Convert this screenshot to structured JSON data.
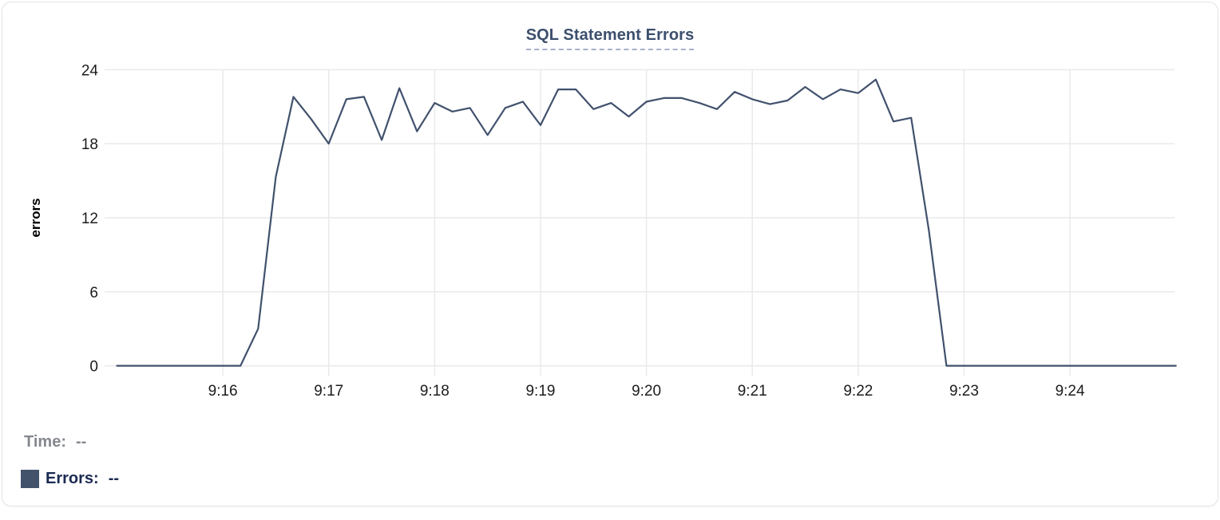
{
  "chart_data": {
    "type": "line",
    "title": "SQL Statement Errors",
    "xlabel": "",
    "ylabel": "errors",
    "ylim": [
      0,
      24
    ],
    "y_ticks": [
      0,
      6,
      12,
      18,
      24
    ],
    "x_tick_labels": [
      "9:16",
      "9:17",
      "9:18",
      "9:19",
      "9:20",
      "9:21",
      "9:22",
      "9:23",
      "9:24"
    ],
    "x_range": [
      "9:15:00",
      "9:25:00"
    ],
    "sample_interval_seconds": 10,
    "grid": true,
    "legend_position": "bottom-left",
    "series": [
      {
        "name": "Errors",
        "color": "#41516d",
        "points": [
          [
            "9:15:00",
            0
          ],
          [
            "9:15:10",
            0
          ],
          [
            "9:15:20",
            0
          ],
          [
            "9:15:30",
            0
          ],
          [
            "9:15:40",
            0
          ],
          [
            "9:15:50",
            0
          ],
          [
            "9:16:00",
            0
          ],
          [
            "9:16:10",
            0
          ],
          [
            "9:16:20",
            3
          ],
          [
            "9:16:30",
            15.3
          ],
          [
            "9:16:40",
            21.8
          ],
          [
            "9:16:50",
            20
          ],
          [
            "9:17:00",
            18
          ],
          [
            "9:17:10",
            21.6
          ],
          [
            "9:17:20",
            21.8
          ],
          [
            "9:17:30",
            18.3
          ],
          [
            "9:17:40",
            22.5
          ],
          [
            "9:17:50",
            19
          ],
          [
            "9:18:00",
            21.3
          ],
          [
            "9:18:10",
            20.6
          ],
          [
            "9:18:20",
            20.9
          ],
          [
            "9:18:30",
            18.7
          ],
          [
            "9:18:40",
            20.9
          ],
          [
            "9:18:50",
            21.4
          ],
          [
            "9:19:00",
            19.5
          ],
          [
            "9:19:10",
            22.4
          ],
          [
            "9:19:20",
            22.4
          ],
          [
            "9:19:30",
            20.8
          ],
          [
            "9:19:40",
            21.3
          ],
          [
            "9:19:50",
            20.2
          ],
          [
            "9:20:00",
            21.4
          ],
          [
            "9:20:10",
            21.7
          ],
          [
            "9:20:20",
            21.7
          ],
          [
            "9:20:30",
            21.3
          ],
          [
            "9:20:40",
            20.8
          ],
          [
            "9:20:50",
            22.2
          ],
          [
            "9:21:00",
            21.6
          ],
          [
            "9:21:10",
            21.2
          ],
          [
            "9:21:20",
            21.5
          ],
          [
            "9:21:30",
            22.6
          ],
          [
            "9:21:40",
            21.6
          ],
          [
            "9:21:50",
            22.4
          ],
          [
            "9:22:00",
            22.1
          ],
          [
            "9:22:10",
            23.2
          ],
          [
            "9:22:20",
            19.8
          ],
          [
            "9:22:30",
            20.1
          ],
          [
            "9:22:40",
            11
          ],
          [
            "9:22:50",
            0
          ],
          [
            "9:23:00",
            0
          ],
          [
            "9:23:10",
            0
          ],
          [
            "9:23:20",
            0
          ],
          [
            "9:23:30",
            0
          ],
          [
            "9:23:40",
            0
          ],
          [
            "9:23:50",
            0
          ],
          [
            "9:24:00",
            0
          ],
          [
            "9:24:10",
            0
          ],
          [
            "9:24:20",
            0
          ],
          [
            "9:24:30",
            0
          ],
          [
            "9:24:40",
            0
          ],
          [
            "9:24:50",
            0
          ],
          [
            "9:25:00",
            0
          ]
        ]
      }
    ]
  },
  "legend": {
    "time_label": "Time:",
    "time_value": "--",
    "errors_label": "Errors:",
    "errors_value": "--",
    "swatch_color": "#42526b"
  },
  "colors": {
    "title_text": "#3c4f6d",
    "title_underline": "#a7b2c6",
    "line": "#41516d",
    "grid": "#e9eaec",
    "axis_text": "#1c1c1e",
    "time_row_text": "#85888e",
    "errors_row_text": "#1b2a52",
    "card_border": "#e2e4e7"
  }
}
